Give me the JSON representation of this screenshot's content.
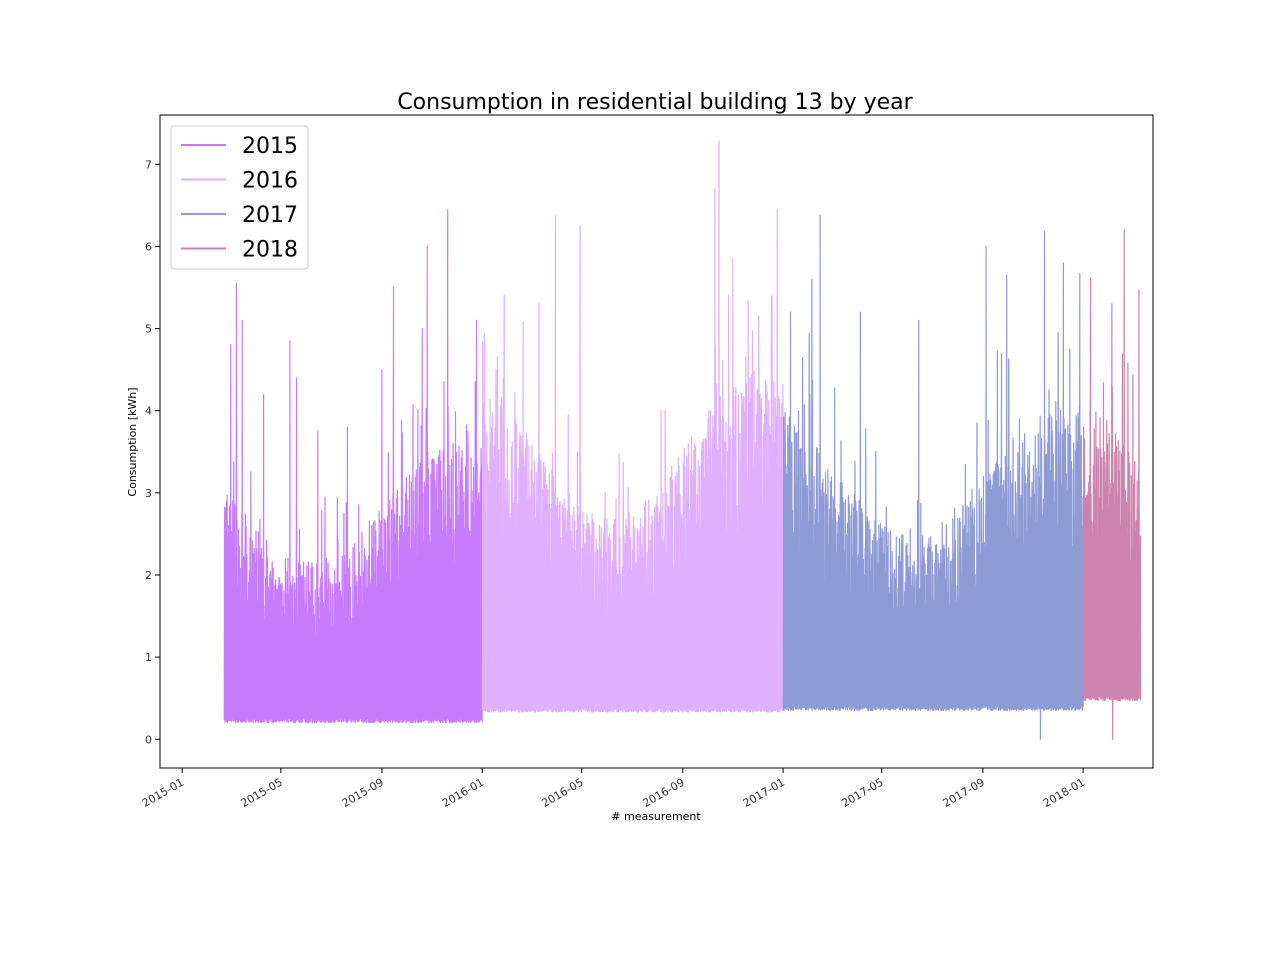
{
  "chart_data": {
    "type": "line",
    "title": "Consumption in residential building 13 by year",
    "xlabel": "# measurement",
    "ylabel": "Consumption [kWh]",
    "xlim": [
      "2014-12-05",
      "2018-03-27"
    ],
    "ylim": [
      -0.35,
      7.6
    ],
    "grid": false,
    "legend_position": "top-left",
    "x_ticks": [
      "2015-01",
      "2015-05",
      "2015-09",
      "2016-01",
      "2016-05",
      "2016-09",
      "2017-01",
      "2017-05",
      "2017-09",
      "2018-01"
    ],
    "y_ticks": [
      0,
      1,
      2,
      3,
      4,
      5,
      6,
      7
    ],
    "series": [
      {
        "name": "2015",
        "color": "#c77cfb",
        "start": "2015-02-21",
        "end": "2016-01-01",
        "baseline": 0.2,
        "typical_high": 2.9,
        "peaks": [
          {
            "date": "2015-03-01",
            "value": 4.8
          },
          {
            "date": "2015-03-08",
            "value": 5.55
          },
          {
            "date": "2015-03-15",
            "value": 5.1
          },
          {
            "date": "2015-04-10",
            "value": 4.2
          },
          {
            "date": "2015-05-12",
            "value": 4.85
          },
          {
            "date": "2015-05-20",
            "value": 4.4
          },
          {
            "date": "2015-06-15",
            "value": 3.75
          },
          {
            "date": "2015-07-21",
            "value": 3.8
          },
          {
            "date": "2015-09-01",
            "value": 4.5
          },
          {
            "date": "2015-09-15",
            "value": 5.5
          },
          {
            "date": "2015-10-20",
            "value": 5.0
          },
          {
            "date": "2015-10-26",
            "value": 6.0
          },
          {
            "date": "2015-11-20",
            "value": 6.45
          },
          {
            "date": "2015-12-25",
            "value": 5.1
          }
        ]
      },
      {
        "name": "2016",
        "color": "#e0b0ff",
        "start": "2016-01-01",
        "end": "2017-01-01",
        "baseline": 0.33,
        "typical_high": 3.6,
        "peaks": [
          {
            "date": "2016-03-10",
            "value": 5.3
          },
          {
            "date": "2016-03-30",
            "value": 6.37
          },
          {
            "date": "2016-04-29",
            "value": 6.25
          },
          {
            "date": "2016-10-10",
            "value": 6.7
          },
          {
            "date": "2016-10-15",
            "value": 7.28
          },
          {
            "date": "2016-11-01",
            "value": 5.85
          },
          {
            "date": "2016-12-25",
            "value": 6.45
          }
        ]
      },
      {
        "name": "2017",
        "color": "#8f9bd5",
        "start": "2017-01-01",
        "end": "2018-01-01",
        "baseline": 0.35,
        "typical_high": 3.3,
        "peaks": [
          {
            "date": "2017-01-10",
            "value": 5.2
          },
          {
            "date": "2017-02-05",
            "value": 5.6
          },
          {
            "date": "2017-02-15",
            "value": 6.38
          },
          {
            "date": "2017-04-05",
            "value": 5.2
          },
          {
            "date": "2017-06-15",
            "value": 5.1
          },
          {
            "date": "2017-09-05",
            "value": 6.0
          },
          {
            "date": "2017-09-30",
            "value": 5.65
          },
          {
            "date": "2017-11-15",
            "value": 6.18
          },
          {
            "date": "2017-12-08",
            "value": 5.8
          },
          {
            "date": "2017-12-28",
            "value": 5.67
          }
        ],
        "dips": [
          {
            "date": "2017-11-10",
            "value": 0.0
          }
        ]
      },
      {
        "name": "2018",
        "color": "#cc83ae",
        "start": "2018-01-01",
        "end": "2018-03-12",
        "baseline": 0.47,
        "typical_high": 3.4,
        "peaks": [
          {
            "date": "2018-01-10",
            "value": 5.62
          },
          {
            "date": "2018-02-05",
            "value": 5.3
          },
          {
            "date": "2018-02-20",
            "value": 6.2
          },
          {
            "date": "2018-03-10",
            "value": 5.47
          }
        ],
        "dips": [
          {
            "date": "2018-02-06",
            "value": 0.0
          }
        ]
      }
    ]
  }
}
